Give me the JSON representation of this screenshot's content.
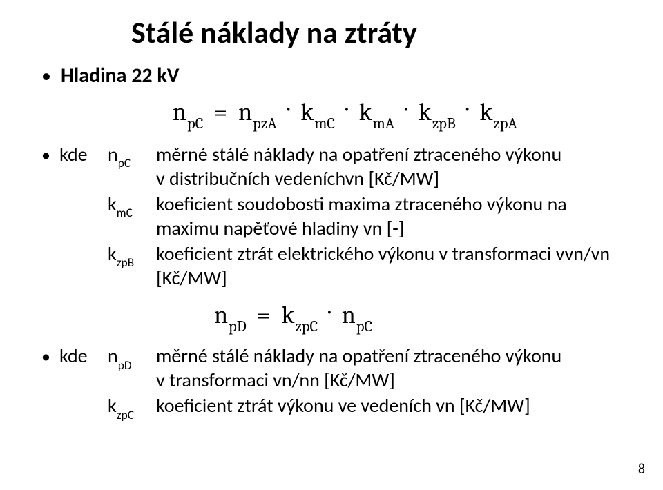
{
  "title": "Stálé náklady na ztráty",
  "bullet1": "Hladina 22 kV",
  "kde_label": "kde",
  "formula1": {
    "lhs_var": "n",
    "lhs_sub": "pC",
    "t1_var": "n",
    "t1_sub": "pzA",
    "t2_var": "k",
    "t2_sub": "mC",
    "t3_var": "k",
    "t3_sub": "mA",
    "t4_var": "k",
    "t4_sub": "zpB",
    "t5_var": "k",
    "t5_sub": "zpA"
  },
  "defs1": [
    {
      "sym_var": "n",
      "sym_sub": "pC",
      "desc": "měrné stálé náklady na opatření ztraceného výkonu v distribučních vedeníchvn [Kč/MW]"
    },
    {
      "sym_var": "k",
      "sym_sub": "mC",
      "desc": "koeficient soudobosti maxima ztraceného výkonu na maximu napěťové hladiny vn [-]"
    },
    {
      "sym_var": "k",
      "sym_sub": "zpB",
      "desc": "koeficient ztrát elektrického výkonu v transformaci vvn/vn [Kč/MW]"
    }
  ],
  "formula2": {
    "lhs_var": "n",
    "lhs_sub": "pD",
    "t1_var": "k",
    "t1_sub": "zpC",
    "t2_var": "n",
    "t2_sub": "pC"
  },
  "defs2": [
    {
      "sym_var": "n",
      "sym_sub": "pD",
      "desc": "měrné stálé náklady na opatření ztraceného výkonu v transformaci vn/nn [Kč/MW]"
    },
    {
      "sym_var": "k",
      "sym_sub": "zpC",
      "desc": "koeficient ztrát výkonu ve vedeních vn [Kč/MW]"
    }
  ],
  "page_number": "8",
  "eq_sign": "=",
  "mul_sign": "·",
  "bullet_char": "•"
}
